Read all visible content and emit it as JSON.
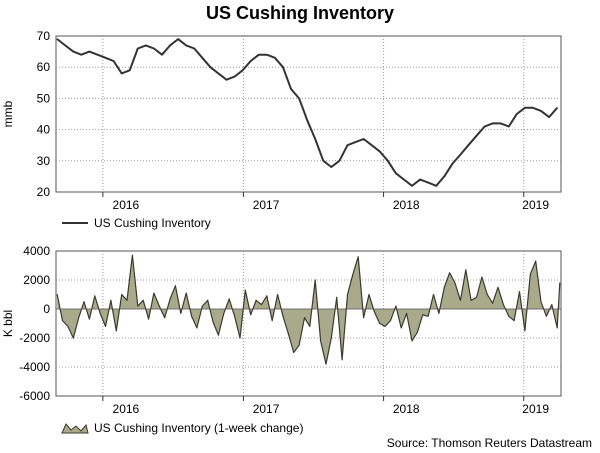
{
  "title": "US Cushing Inventory",
  "source": "Source: Thomson Reuters Datastream",
  "colors": {
    "line": "#333333",
    "area_fill": "#a9a98c",
    "area_stroke": "#3a3a2e",
    "grid": "#9a9a9a"
  },
  "chart_data": [
    {
      "type": "line",
      "title": "US Cushing Inventory",
      "ylabel": "mmb",
      "xlabel": "",
      "ylim": [
        20,
        70
      ],
      "yticks": [
        20,
        30,
        40,
        50,
        60,
        70
      ],
      "xlim": [
        "2015-09-01",
        "2019-04-08"
      ],
      "xtick_labels": [
        "2016",
        "2017",
        "2018",
        "2019"
      ],
      "xtick_label_dates": [
        "2016-03-01",
        "2017-03-01",
        "2018-03-01",
        "2019-02-01"
      ],
      "year_boundaries": [
        "2016-01-01",
        "2017-01-01",
        "2018-01-01",
        "2019-01-01"
      ],
      "grid": true,
      "legend": "bottom-left",
      "series": [
        {
          "name": "US Cushing Inventory",
          "x": [
            "2015-09-04",
            "2015-09-25",
            "2015-10-16",
            "2015-11-06",
            "2015-11-27",
            "2015-12-18",
            "2016-01-08",
            "2016-01-29",
            "2016-02-19",
            "2016-03-11",
            "2016-04-01",
            "2016-04-22",
            "2016-05-13",
            "2016-06-03",
            "2016-06-24",
            "2016-07-15",
            "2016-08-05",
            "2016-08-26",
            "2016-09-16",
            "2016-10-07",
            "2016-10-28",
            "2016-11-18",
            "2016-12-09",
            "2016-12-30",
            "2017-01-20",
            "2017-02-10",
            "2017-03-03",
            "2017-03-24",
            "2017-04-14",
            "2017-05-05",
            "2017-05-26",
            "2017-06-16",
            "2017-07-07",
            "2017-07-28",
            "2017-08-18",
            "2017-09-08",
            "2017-09-29",
            "2017-10-20",
            "2017-11-10",
            "2017-12-01",
            "2017-12-22",
            "2018-01-12",
            "2018-02-02",
            "2018-02-23",
            "2018-03-16",
            "2018-04-06",
            "2018-04-27",
            "2018-05-18",
            "2018-06-08",
            "2018-06-29",
            "2018-07-20",
            "2018-08-10",
            "2018-08-31",
            "2018-09-21",
            "2018-10-12",
            "2018-11-02",
            "2018-11-23",
            "2018-12-14",
            "2019-01-04",
            "2019-01-25",
            "2019-02-15",
            "2019-03-08",
            "2019-03-29"
          ],
          "values": [
            69,
            67,
            65,
            64,
            65,
            64,
            63,
            62,
            58,
            59,
            66,
            67,
            66,
            64,
            67,
            69,
            67,
            66,
            63,
            60,
            58,
            56,
            57,
            59,
            62,
            64,
            64,
            63,
            60,
            53,
            50,
            43,
            37,
            30,
            28,
            30,
            35,
            36,
            37,
            35,
            33,
            30,
            26,
            24,
            22,
            24,
            23,
            22,
            25,
            29,
            32,
            35,
            38,
            41,
            42,
            42,
            41,
            45,
            47,
            47,
            46,
            44,
            47
          ]
        }
      ]
    },
    {
      "type": "area",
      "title": "",
      "ylabel": "K bbl",
      "xlabel": "",
      "ylim": [
        -6000,
        4000
      ],
      "yticks": [
        -6000,
        -4000,
        -2000,
        0,
        2000,
        4000
      ],
      "xlim": [
        "2015-09-01",
        "2019-04-08"
      ],
      "xtick_labels": [
        "2016",
        "2017",
        "2018",
        "2019"
      ],
      "xtick_label_dates": [
        "2016-03-01",
        "2017-03-01",
        "2018-03-01",
        "2019-02-01"
      ],
      "year_boundaries": [
        "2016-01-01",
        "2017-01-01",
        "2018-01-01",
        "2019-01-01"
      ],
      "grid": true,
      "legend": "bottom-left",
      "series": [
        {
          "name": "US Cushing Inventory (1-week change)",
          "x": [
            "2015-09-04",
            "2015-09-18",
            "2015-10-02",
            "2015-10-16",
            "2015-10-30",
            "2015-11-13",
            "2015-11-27",
            "2015-12-11",
            "2015-12-25",
            "2016-01-08",
            "2016-01-22",
            "2016-02-05",
            "2016-02-19",
            "2016-03-04",
            "2016-03-18",
            "2016-04-01",
            "2016-04-15",
            "2016-04-29",
            "2016-05-13",
            "2016-05-27",
            "2016-06-10",
            "2016-06-24",
            "2016-07-08",
            "2016-07-22",
            "2016-08-05",
            "2016-08-19",
            "2016-09-02",
            "2016-09-16",
            "2016-09-30",
            "2016-10-14",
            "2016-10-28",
            "2016-11-11",
            "2016-11-25",
            "2016-12-09",
            "2016-12-23",
            "2017-01-06",
            "2017-01-20",
            "2017-02-03",
            "2017-02-17",
            "2017-03-03",
            "2017-03-17",
            "2017-03-31",
            "2017-04-14",
            "2017-04-28",
            "2017-05-12",
            "2017-05-26",
            "2017-06-09",
            "2017-06-23",
            "2017-07-07",
            "2017-07-21",
            "2017-08-04",
            "2017-08-18",
            "2017-09-01",
            "2017-09-15",
            "2017-09-29",
            "2017-10-13",
            "2017-10-27",
            "2017-11-10",
            "2017-11-24",
            "2017-12-08",
            "2017-12-22",
            "2018-01-05",
            "2018-01-19",
            "2018-02-02",
            "2018-02-16",
            "2018-03-02",
            "2018-03-16",
            "2018-03-30",
            "2018-04-13",
            "2018-04-27",
            "2018-05-11",
            "2018-05-25",
            "2018-06-08",
            "2018-06-22",
            "2018-07-06",
            "2018-07-20",
            "2018-08-03",
            "2018-08-17",
            "2018-08-31",
            "2018-09-14",
            "2018-09-28",
            "2018-10-12",
            "2018-10-26",
            "2018-11-09",
            "2018-11-23",
            "2018-12-07",
            "2018-12-21",
            "2019-01-04",
            "2019-01-18",
            "2019-02-01",
            "2019-02-15",
            "2019-03-01",
            "2019-03-15",
            "2019-03-29",
            "2019-04-05"
          ],
          "values": [
            1000,
            -800,
            -1200,
            -2000,
            -600,
            500,
            -700,
            900,
            -300,
            -1200,
            600,
            -1500,
            1000,
            600,
            3700,
            200,
            600,
            -700,
            1100,
            200,
            -600,
            700,
            1600,
            -300,
            1100,
            -500,
            -1300,
            200,
            600,
            -900,
            -1800,
            -300,
            700,
            -500,
            -2000,
            1300,
            -400,
            600,
            300,
            900,
            -800,
            1000,
            -500,
            -1700,
            -3000,
            -2500,
            -600,
            -1200,
            2000,
            -2200,
            -3800,
            -2000,
            800,
            -3500,
            1000,
            2400,
            3600,
            -600,
            1000,
            -200,
            -1000,
            -1200,
            -800,
            200,
            -1300,
            -300,
            -2200,
            -1600,
            -400,
            -500,
            1000,
            -300,
            1500,
            2500,
            1800,
            600,
            2700,
            600,
            800,
            2200,
            1000,
            400,
            1500,
            300,
            -500,
            -800,
            1200,
            -1500,
            2400,
            3300,
            500,
            -500,
            300,
            -1300,
            1800
          ]
        }
      ]
    }
  ],
  "panels": [
    {
      "legend": "US Cushing Inventory"
    },
    {
      "legend": "US Cushing Inventory (1-week change)"
    }
  ]
}
